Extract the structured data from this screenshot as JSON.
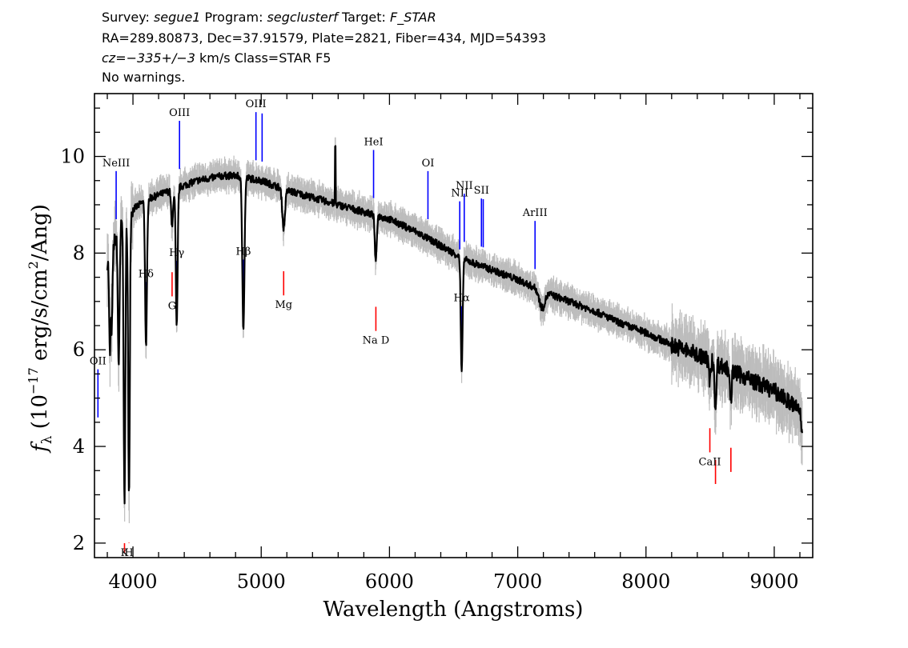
{
  "header": {
    "line1": {
      "survey_label": "Survey: ",
      "survey": "segue1",
      "program_label": " Program: ",
      "program": "segclusterf",
      "target_label": " Target: ",
      "target": "F_STAR"
    },
    "line2": "RA=289.80873, Dec=37.91579, Plate=2821, Fiber=434, MJD=54393",
    "line3": {
      "cz": "cz=−335+/−3",
      "rest": " km/s Class=STAR F5"
    },
    "line4": "No warnings."
  },
  "chart_data": {
    "type": "line",
    "title": "",
    "xlabel": "Wavelength (Angstroms)",
    "ylabel_parts": {
      "f": "f",
      "sub": "λ",
      "pre": " (10",
      "exp": "−17",
      "post": " erg/s/cm",
      "exp2": "2",
      "end": "/Ang)"
    },
    "xlim": [
      3700,
      9300
    ],
    "ylim": [
      1.7,
      11.3
    ],
    "x_ticks": [
      4000,
      5000,
      6000,
      7000,
      8000,
      9000
    ],
    "y_ticks": [
      2,
      4,
      6,
      8,
      10
    ],
    "x_minor_step": 200,
    "y_minor_step": 0.5,
    "continuum": {
      "x": [
        3800,
        3900,
        4000,
        4100,
        4200,
        4300,
        4400,
        4500,
        4600,
        4700,
        4800,
        4900,
        5000,
        5200,
        5400,
        5600,
        5800,
        6000,
        6200,
        6400,
        6600,
        6800,
        7000,
        7200,
        7400,
        7600,
        7800,
        8000,
        8200,
        8400,
        8600,
        8800,
        9000,
        9100,
        9200,
        9220
      ],
      "y": [
        7.8,
        8.6,
        8.9,
        9.1,
        9.2,
        9.3,
        9.4,
        9.5,
        9.55,
        9.6,
        9.6,
        9.55,
        9.5,
        9.3,
        9.15,
        9.0,
        8.85,
        8.7,
        8.45,
        8.15,
        7.85,
        7.65,
        7.45,
        7.2,
        7.0,
        6.8,
        6.55,
        6.35,
        6.1,
        5.9,
        5.65,
        5.4,
        5.15,
        4.95,
        4.75,
        4.2
      ]
    },
    "absorption_features": [
      {
        "x": 3820,
        "depth": 2.0,
        "width": 8
      },
      {
        "x": 3835,
        "depth": 1.6,
        "width": 8
      },
      {
        "x": 3889,
        "depth": 2.8,
        "width": 10
      },
      {
        "x": 3934,
        "depth": 6.0,
        "width": 9
      },
      {
        "x": 3969,
        "depth": 5.9,
        "width": 9
      },
      {
        "x": 4102,
        "depth": 3.1,
        "width": 10
      },
      {
        "x": 4305,
        "depth": 0.8,
        "width": 10
      },
      {
        "x": 4341,
        "depth": 2.9,
        "width": 10
      },
      {
        "x": 4861,
        "depth": 3.1,
        "width": 12
      },
      {
        "x": 5175,
        "depth": 0.8,
        "width": 15
      },
      {
        "x": 5893,
        "depth": 1.0,
        "width": 10
      },
      {
        "x": 6563,
        "depth": 2.4,
        "width": 10
      },
      {
        "x": 7190,
        "depth": 0.35,
        "width": 30
      },
      {
        "x": 8498,
        "depth": 0.5,
        "width": 8
      },
      {
        "x": 8542,
        "depth": 1.1,
        "width": 8
      },
      {
        "x": 8662,
        "depth": 0.7,
        "width": 8
      }
    ],
    "emission_spike": {
      "x": 5577,
      "height": 1.2
    },
    "emission_lines": [
      {
        "label": "OII",
        "x": 3727
      },
      {
        "label": "NeIII",
        "x": 3869
      },
      {
        "label": "Hδ",
        "x": 4102
      },
      {
        "label": "Hγ",
        "x": 4341
      },
      {
        "label": "OIII",
        "x": 4363
      },
      {
        "label": "Hβ",
        "x": 4861
      },
      {
        "label": "OIII",
        "x": 4959
      },
      {
        "label": "",
        "x": 5007
      },
      {
        "label": "HeI",
        "x": 5876
      },
      {
        "label": "OI",
        "x": 6300
      },
      {
        "label": "NII",
        "x": 6548
      },
      {
        "label": "Hα",
        "x": 6563
      },
      {
        "label": "NII",
        "x": 6583
      },
      {
        "label": "SII",
        "x": 6717
      },
      {
        "label": "",
        "x": 6731
      },
      {
        "label": "ArIII",
        "x": 7135
      }
    ],
    "absorption_lines": [
      {
        "label": "K",
        "x": 3934
      },
      {
        "label": "H",
        "x": 3969
      },
      {
        "label": "G",
        "x": 4305
      },
      {
        "label": "Mg",
        "x": 5175
      },
      {
        "label": "Na D",
        "x": 5894
      },
      {
        "label": "CaII",
        "x": 8498
      },
      {
        "label": "",
        "x": 8542
      },
      {
        "label": "",
        "x": 8662
      }
    ],
    "colors": {
      "spectrum": "#000000",
      "error_band": "#bdbdbd",
      "emission_marker": "#0000ff",
      "absorption_marker": "#ff0000"
    }
  }
}
